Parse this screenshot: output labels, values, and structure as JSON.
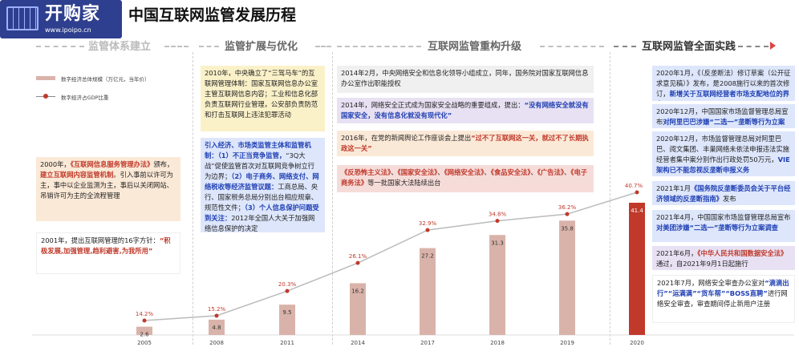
{
  "page": {
    "title": "中国互联网监管发展历程"
  },
  "logo": {
    "name": "开购家",
    "url": "www.ipoipo.cn"
  },
  "phases": [
    {
      "label": "监管体系建立"
    },
    {
      "label": "监管扩展与优化"
    },
    {
      "label": "互联网监管重构升级"
    },
    {
      "label": "互联网监管全面实践"
    }
  ],
  "legend": {
    "bar": "数字经济总体规模（万亿元，当年价）",
    "line": "数字经济占GDP比重"
  },
  "boxes": {
    "b2000": [
      {
        "t": "2000年，"
      },
      {
        "t": "《互联网信息服务管理办法》",
        "c": "red"
      },
      {
        "t": "颁布，"
      },
      {
        "t": "建立互联网内容监管机制",
        "c": "red"
      },
      {
        "t": "。引入事前以许可为主，事中以企业监测为主，事后以关闭网站、吊销许可为主的全流程管理"
      }
    ],
    "b2001": [
      {
        "t": "2001年，提出互联网管理的16字方针："
      },
      {
        "t": "“积极发展,加强管理,趋利避害,为我所用”",
        "c": "red"
      }
    ],
    "b2010": [
      {
        "t": "2010年，中央确立了“三驾马车”的互联网管理体制："
      },
      {
        "t": "国家互联网信息办公室主管互联网信息内容；工业和信息化部",
        "c": "b"
      },
      {
        "t": "负责互联网行业管理，"
      },
      {
        "t": "公安部",
        "c": "b"
      },
      {
        "t": "负责防范和打击互联网上违法犯罪活动",
        "c": "b"
      }
    ],
    "b2011": [
      {
        "t": "引入经济、市场类监管主体和监管机制：",
        "c": "blue"
      },
      {
        "t": "（1）不正当竞争监管，",
        "c": "blue"
      },
      {
        "t": "“3Q大战”促使监管首次对互联网竞争树立行为边界；"
      },
      {
        "t": "（2）电子商务、网络支付、网络税收等经济监管议题：",
        "c": "blue"
      },
      {
        "t": "工商总局、央行、国家税务总局分别出台相应规章、规范性文件；"
      },
      {
        "t": "（3）个人信息保护问题受到关注：",
        "c": "blue"
      },
      {
        "t": "2012年全国人大关于加强网络信息保护的决定"
      }
    ],
    "b2014a": [
      {
        "t": "2014年2月，"
      },
      {
        "t": "中央网络安全和信息化领导小组",
        "c": "b"
      },
      {
        "t": "成立，同年，国务院对国家互联网信息办公室作出职能授权"
      }
    ],
    "b2014b": [
      {
        "t": "2014年，网络安全正式成为国家安全战略的重要组成，提出："
      },
      {
        "t": "“没有网络安全就没有国家安全，没有信息化就没有现代化”",
        "c": "blue"
      }
    ],
    "b2016": [
      {
        "t": "2016年，在党的新闻舆论工作座谈会上提出"
      },
      {
        "t": "“过不了互联网这一关，就过不了长期执政这一关”",
        "c": "red"
      }
    ],
    "blaws": [
      {
        "t": "《反恐怖主义法》",
        "c": "red"
      },
      {
        "t": "、"
      },
      {
        "t": "《国家安全法》",
        "c": "red"
      },
      {
        "t": "、"
      },
      {
        "t": "《网络安全法》",
        "c": "red"
      },
      {
        "t": "、"
      },
      {
        "t": "《食品安全法》",
        "c": "red"
      },
      {
        "t": "、"
      },
      {
        "t": "《广告法》",
        "c": "red"
      },
      {
        "t": "、"
      },
      {
        "t": "《电子商务法》",
        "c": "red"
      },
      {
        "t": "等一批国家大法陆续出台"
      }
    ],
    "b2020a": [
      {
        "t": "2020年1月，《（反垄断法）修订草案（公开征求意见稿）》发布，是2008施行以来的首次修订，"
      },
      {
        "t": "新增关于互联网经营者市场支配地位的界定",
        "c": "blue"
      }
    ],
    "b2020b": [
      {
        "t": "2020年12月，中国国家市场监督管理总局宣布"
      },
      {
        "t": "对阿里巴巴涉嫌“二选一”垄断等行为立案调查",
        "c": "blue"
      }
    ],
    "b2020c": [
      {
        "t": "2020年12月，市场监督管理总局对阿里巴巴、阅文集团、丰巢网络未依法申报违法实施经营者集中案分别作出行政处罚50万元，"
      },
      {
        "t": "VIE架构已不能忽视反垄断申报义务",
        "c": "blue"
      }
    ],
    "b2021a": [
      {
        "t": "2021年1月"
      },
      {
        "t": "《国务院反垄断委员会关于平台经济领域的反垄断指南》",
        "c": "blue"
      },
      {
        "t": "发布"
      }
    ],
    "b2021b": [
      {
        "t": "2021年4月，中国国家市场监督管理总局宣布"
      },
      {
        "t": "对美团涉嫌“二选一”垄断等行为立案调查",
        "c": "blue"
      }
    ],
    "b2021c": [
      {
        "t": "2021年6月，"
      },
      {
        "t": "《中华人民共和国数据安全法》",
        "c": "red"
      },
      {
        "t": "通过，自2021年9月1日起施行"
      }
    ],
    "b2021d": [
      {
        "t": "2021年7月，网络安全审查办公室对"
      },
      {
        "t": "“滴滴出行”“运满满”“货车帮”“BOSS直聘”",
        "c": "blue"
      },
      {
        "t": "进行网络安全审查，审查期间停止新用户注册"
      }
    ]
  },
  "chart_data": {
    "type": "bar",
    "categories": [
      "2005",
      "2008",
      "2011",
      "2014",
      "2017",
      "2018",
      "2019",
      "2020"
    ],
    "series": [
      {
        "name": "数字经济总体规模（万亿元，当年价）",
        "values": [
          2.6,
          4.8,
          9.5,
          16.2,
          27.2,
          31.3,
          35.8,
          41.4
        ]
      },
      {
        "name": "数字经济占GDP比重",
        "values": [
          14.2,
          15.2,
          20.3,
          26.1,
          32.9,
          34.8,
          36.2,
          40.7
        ],
        "type": "line"
      }
    ],
    "bar_labels": [
      "2.6",
      "4.8",
      "9.5",
      "16.2",
      "27.2",
      "31.3",
      "35.8",
      "41.4"
    ],
    "line_labels": [
      "14.2%",
      "15.2%",
      "20.3%",
      "26.1%",
      "32.9%",
      "34.8%",
      "36.2%",
      "40.7%"
    ],
    "legend_position": "top-left",
    "grid": false,
    "colors": {
      "bar": "#d9b3aa",
      "bar_highlight": "#c0392b",
      "line": "#bbbbbb",
      "marker": "#c0392b",
      "arrow": "#d44444"
    }
  }
}
